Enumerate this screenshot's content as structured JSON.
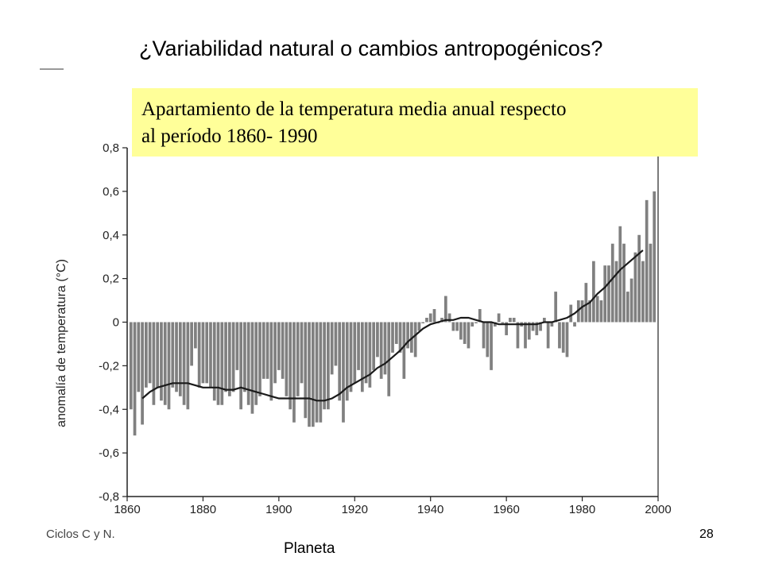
{
  "slide": {
    "title": "¿Variabilidad natural o cambios antropogénicos?",
    "box_line1": "Apartamiento de la temperatura media anual respecto",
    "box_line2": "al período 1860- 1990",
    "footer_left": "Ciclos C y N.",
    "footer_center": "Planeta",
    "page_number": "28"
  },
  "colors": {
    "highlight": "#ffff99",
    "bars": "#808080",
    "line": "#1a1a1a"
  },
  "chart_data": {
    "type": "bar",
    "title": "",
    "xlabel": "",
    "ylabel": "anomalía de temperatura (°C)",
    "xlim": [
      1860,
      2000
    ],
    "ylim": [
      -0.8,
      0.8
    ],
    "grid": false,
    "xticks": [
      "1860",
      "1880",
      "1900",
      "1920",
      "1940",
      "1960",
      "1980",
      "2000"
    ],
    "yticks": [
      "0,8",
      "0,6",
      "0,4",
      "0,2",
      "0",
      "-0,2",
      "-0,4",
      "-0,6",
      "-0,8"
    ],
    "series": [
      {
        "type": "bar",
        "x": [
          1861,
          1862,
          1863,
          1864,
          1865,
          1866,
          1867,
          1868,
          1869,
          1870,
          1871,
          1872,
          1873,
          1874,
          1875,
          1876,
          1877,
          1878,
          1879,
          1880,
          1881,
          1882,
          1883,
          1884,
          1885,
          1886,
          1887,
          1888,
          1889,
          1890,
          1891,
          1892,
          1893,
          1894,
          1895,
          1896,
          1897,
          1898,
          1899,
          1900,
          1901,
          1902,
          1903,
          1904,
          1905,
          1906,
          1907,
          1908,
          1909,
          1910,
          1911,
          1912,
          1913,
          1914,
          1915,
          1916,
          1917,
          1918,
          1919,
          1920,
          1921,
          1922,
          1923,
          1924,
          1925,
          1926,
          1927,
          1928,
          1929,
          1930,
          1931,
          1932,
          1933,
          1934,
          1935,
          1936,
          1937,
          1938,
          1939,
          1940,
          1941,
          1942,
          1943,
          1944,
          1945,
          1946,
          1947,
          1948,
          1949,
          1950,
          1951,
          1952,
          1953,
          1954,
          1955,
          1956,
          1957,
          1958,
          1959,
          1960,
          1961,
          1962,
          1963,
          1964,
          1965,
          1966,
          1967,
          1968,
          1969,
          1970,
          1971,
          1972,
          1973,
          1974,
          1975,
          1976,
          1977,
          1978,
          1979,
          1980,
          1981,
          1982,
          1983,
          1984,
          1985,
          1986,
          1987,
          1988,
          1989,
          1990,
          1991,
          1992,
          1993,
          1994,
          1995,
          1996,
          1997,
          1998,
          1999
        ],
        "values": [
          -0.4,
          -0.52,
          -0.32,
          -0.47,
          -0.3,
          -0.28,
          -0.38,
          -0.3,
          -0.36,
          -0.38,
          -0.4,
          -0.3,
          -0.32,
          -0.34,
          -0.38,
          -0.4,
          -0.2,
          -0.12,
          -0.3,
          -0.28,
          -0.28,
          -0.3,
          -0.36,
          -0.38,
          -0.38,
          -0.32,
          -0.34,
          -0.32,
          -0.22,
          -0.4,
          -0.32,
          -0.38,
          -0.42,
          -0.38,
          -0.34,
          -0.26,
          -0.26,
          -0.36,
          -0.28,
          -0.22,
          -0.26,
          -0.34,
          -0.4,
          -0.46,
          -0.34,
          -0.28,
          -0.44,
          -0.48,
          -0.48,
          -0.46,
          -0.46,
          -0.4,
          -0.4,
          -0.24,
          -0.2,
          -0.36,
          -0.46,
          -0.36,
          -0.32,
          -0.28,
          -0.22,
          -0.32,
          -0.28,
          -0.3,
          -0.22,
          -0.16,
          -0.26,
          -0.24,
          -0.34,
          -0.14,
          -0.1,
          -0.14,
          -0.26,
          -0.12,
          -0.14,
          -0.16,
          -0.04,
          0.0,
          0.02,
          0.04,
          0.06,
          0.0,
          0.02,
          0.12,
          0.04,
          -0.04,
          -0.04,
          -0.08,
          -0.1,
          -0.12,
          -0.02,
          0.0,
          0.06,
          -0.12,
          -0.16,
          -0.22,
          -0.02,
          0.04,
          0.0,
          -0.06,
          0.02,
          0.02,
          -0.12,
          -0.02,
          -0.12,
          -0.08,
          -0.04,
          -0.06,
          -0.04,
          0.02,
          -0.12,
          -0.02,
          0.14,
          -0.12,
          -0.14,
          -0.16,
          0.08,
          -0.02,
          0.1,
          0.1,
          0.18,
          0.1,
          0.28,
          0.12,
          0.1,
          0.26,
          0.26,
          0.36,
          0.28,
          0.44,
          0.36,
          0.14,
          0.2,
          0.32,
          0.4,
          0.28,
          0.56,
          0.36,
          0.6
        ]
      },
      {
        "type": "line",
        "name": "",
        "x": [
          1864,
          1866,
          1868,
          1870,
          1872,
          1874,
          1876,
          1878,
          1880,
          1882,
          1884,
          1886,
          1888,
          1890,
          1892,
          1894,
          1896,
          1898,
          1900,
          1902,
          1904,
          1906,
          1908,
          1910,
          1912,
          1914,
          1916,
          1918,
          1920,
          1922,
          1924,
          1926,
          1928,
          1930,
          1932,
          1934,
          1936,
          1938,
          1940,
          1942,
          1944,
          1946,
          1948,
          1950,
          1952,
          1954,
          1956,
          1958,
          1960,
          1962,
          1964,
          1966,
          1968,
          1970,
          1972,
          1974,
          1976,
          1978,
          1980,
          1982,
          1984,
          1986,
          1988,
          1990,
          1992,
          1994,
          1996
        ],
        "values": [
          -0.35,
          -0.32,
          -0.3,
          -0.29,
          -0.28,
          -0.28,
          -0.28,
          -0.29,
          -0.3,
          -0.3,
          -0.3,
          -0.31,
          -0.31,
          -0.3,
          -0.31,
          -0.32,
          -0.33,
          -0.34,
          -0.35,
          -0.35,
          -0.35,
          -0.35,
          -0.35,
          -0.36,
          -0.36,
          -0.35,
          -0.33,
          -0.3,
          -0.28,
          -0.26,
          -0.24,
          -0.21,
          -0.19,
          -0.16,
          -0.13,
          -0.09,
          -0.06,
          -0.03,
          -0.01,
          0.0,
          0.01,
          0.01,
          0.02,
          0.02,
          0.01,
          0.0,
          0.0,
          -0.01,
          -0.01,
          -0.01,
          -0.01,
          -0.01,
          -0.01,
          0.0,
          0.0,
          0.01,
          0.02,
          0.04,
          0.07,
          0.09,
          0.13,
          0.16,
          0.2,
          0.24,
          0.27,
          0.3,
          0.33
        ]
      }
    ]
  }
}
